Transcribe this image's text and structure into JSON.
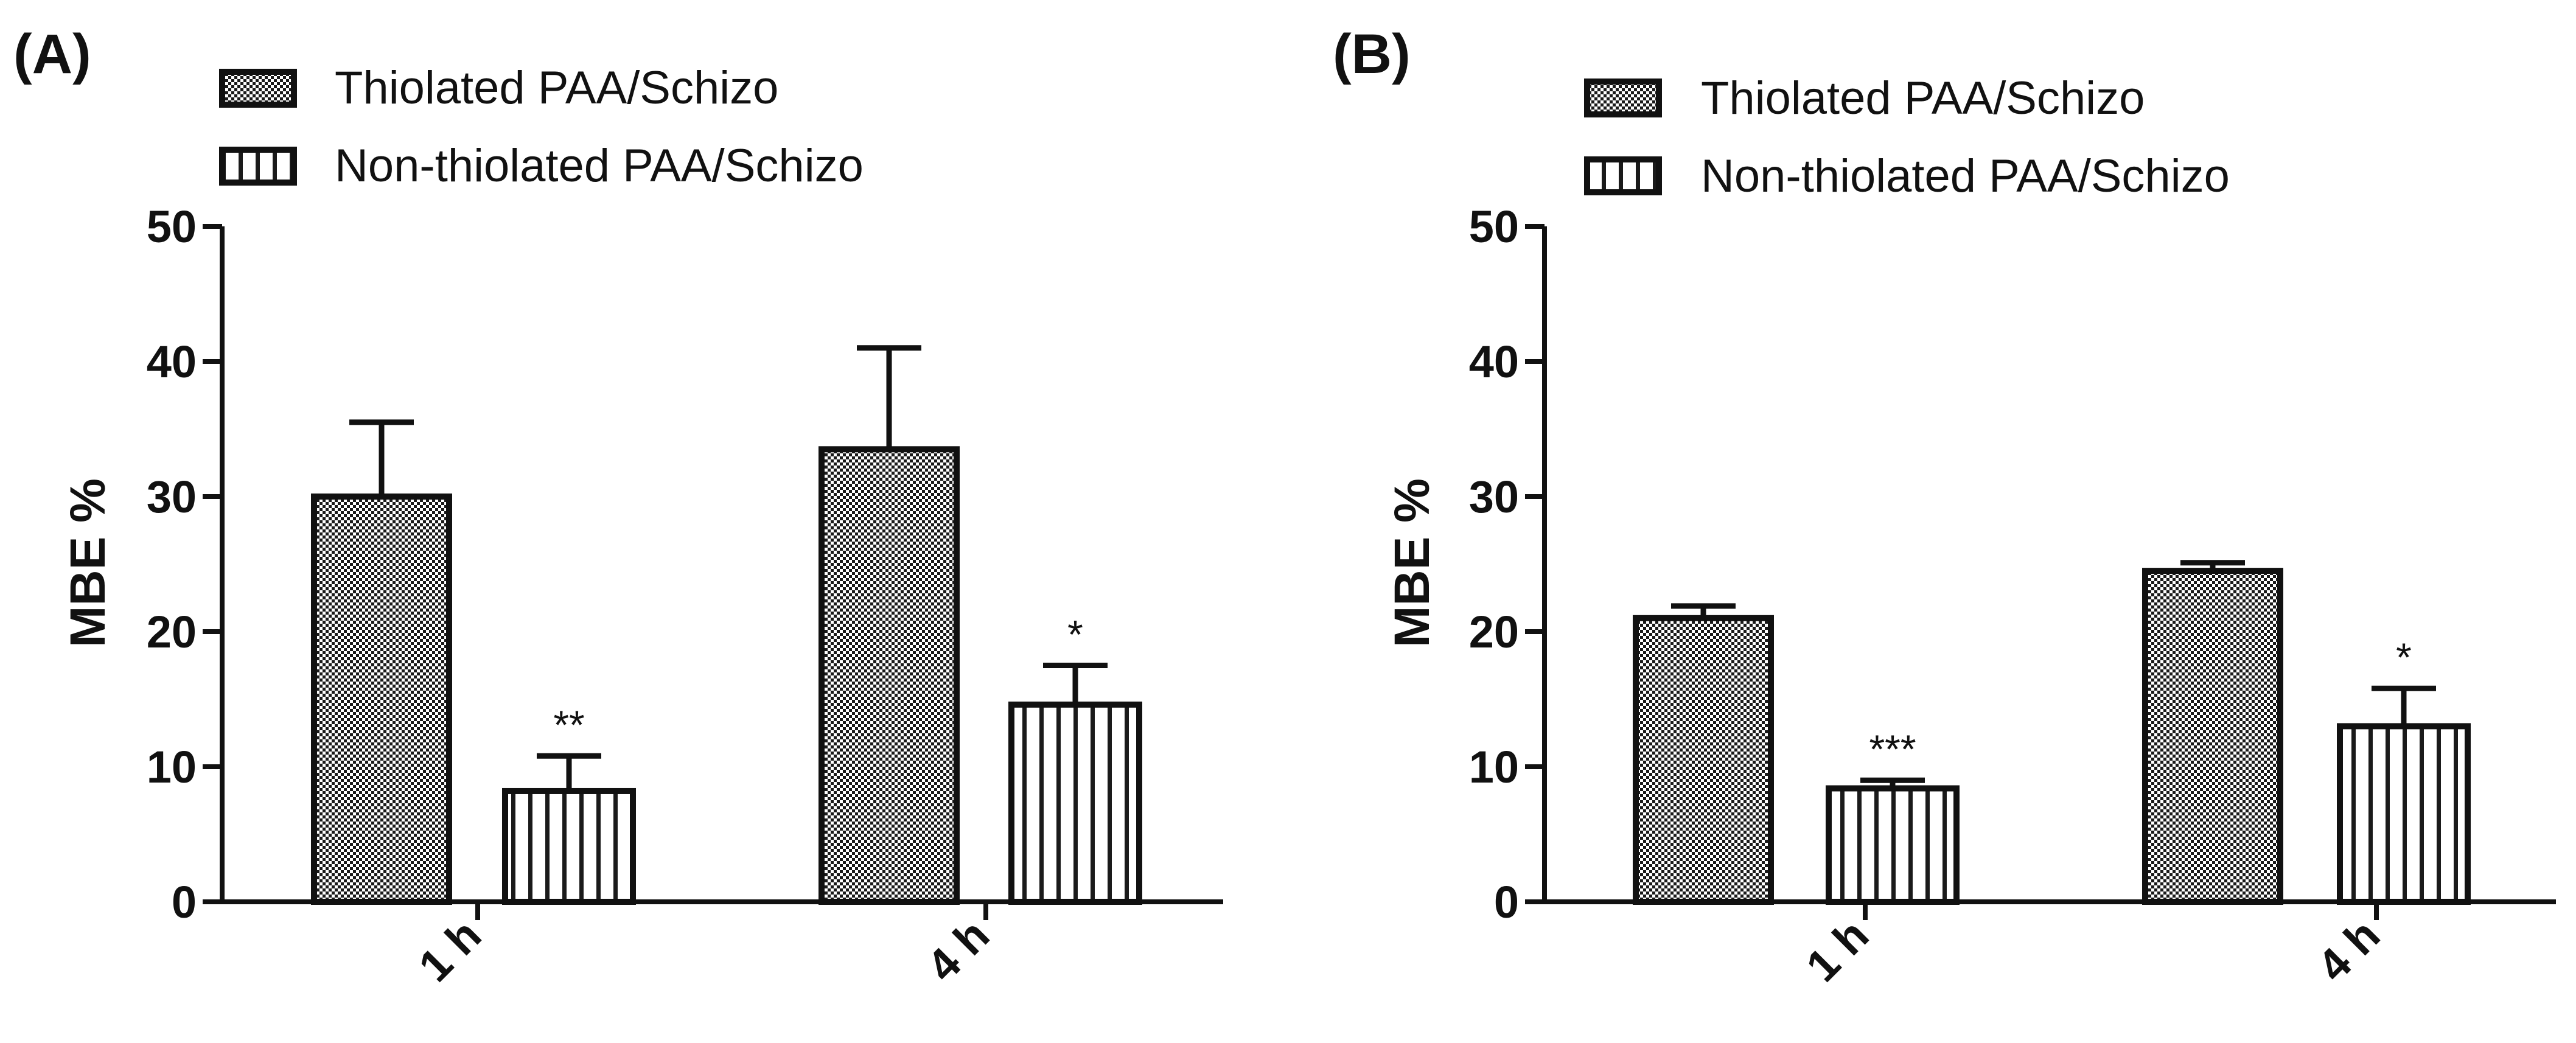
{
  "chart_data": [
    {
      "type": "bar",
      "panel_label": "(A)",
      "categories": [
        "1 h",
        "4 h"
      ],
      "series": [
        {
          "name": "Thiolated PAA/Schizo",
          "pattern": "checker",
          "values": [
            30,
            33.5
          ],
          "errors": [
            5.5,
            7.5
          ]
        },
        {
          "name": "Non-thiolated PAA/Schizo",
          "pattern": "vstripes",
          "values": [
            8.2,
            14.6
          ],
          "errors": [
            2.6,
            2.9
          ]
        }
      ],
      "significance": [
        [
          "",
          ""
        ],
        [
          "**",
          "*"
        ]
      ],
      "ylabel": "MBE %",
      "xlabel": "",
      "ylim": [
        0,
        50
      ],
      "yticks": [
        0,
        10,
        20,
        30,
        40,
        50
      ],
      "legend_position": "top-left"
    },
    {
      "type": "bar",
      "panel_label": "(B)",
      "categories": [
        "1 h",
        "4 h"
      ],
      "series": [
        {
          "name": "Thiolated PAA/Schizo",
          "pattern": "checker",
          "values": [
            21,
            24.5
          ],
          "errors": [
            0.9,
            0.6
          ]
        },
        {
          "name": "Non-thiolated PAA/Schizo",
          "pattern": "vstripes",
          "values": [
            8.4,
            13
          ],
          "errors": [
            0.6,
            2.8
          ]
        }
      ],
      "significance": [
        [
          "",
          ""
        ],
        [
          "***",
          "*"
        ]
      ],
      "ylabel": "MBE %",
      "xlabel": "",
      "ylim": [
        0,
        50
      ],
      "yticks": [
        0,
        10,
        20,
        30,
        40,
        50
      ],
      "legend_position": "top-left"
    }
  ]
}
